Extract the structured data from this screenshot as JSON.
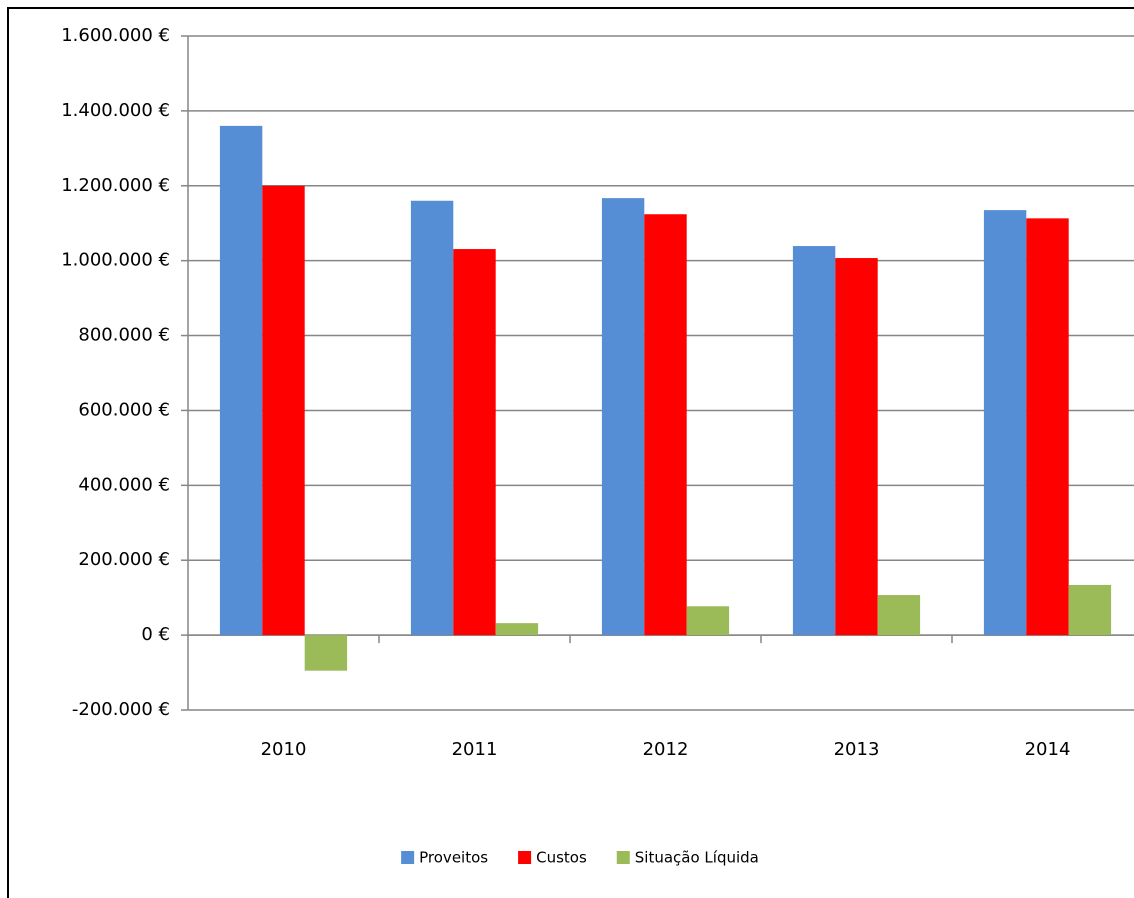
{
  "chart_data": {
    "type": "bar",
    "categories": [
      "2010",
      "2011",
      "2012",
      "2013",
      "2014"
    ],
    "series": [
      {
        "name": "Proveitos",
        "color": "#558ed5",
        "values": [
          1360000,
          1160000,
          1167000,
          1039000,
          1135000
        ]
      },
      {
        "name": "Custos",
        "color": "#ff0000",
        "values": [
          1200000,
          1031000,
          1124000,
          1007000,
          1113000
        ]
      },
      {
        "name": "Situação Líquida",
        "color": "#9bbb59",
        "values": [
          -95000,
          32000,
          77000,
          107000,
          134000
        ]
      }
    ],
    "ylim": [
      -200000,
      1600000
    ],
    "yticks": [
      {
        "value": -200000,
        "label": "-200.000 €"
      },
      {
        "value": 0,
        "label": "0 €"
      },
      {
        "value": 200000,
        "label": "200.000 €"
      },
      {
        "value": 400000,
        "label": "400.000 €"
      },
      {
        "value": 600000,
        "label": "600.000 €"
      },
      {
        "value": 800000,
        "label": "800.000 €"
      },
      {
        "value": 1000000,
        "label": "1.000.000 €"
      },
      {
        "value": 1200000,
        "label": "1.200.000 €"
      },
      {
        "value": 1400000,
        "label": "1.400.000 €"
      },
      {
        "value": 1600000,
        "label": "1.600.000 €"
      }
    ],
    "grid": true,
    "legend": "bottom"
  }
}
